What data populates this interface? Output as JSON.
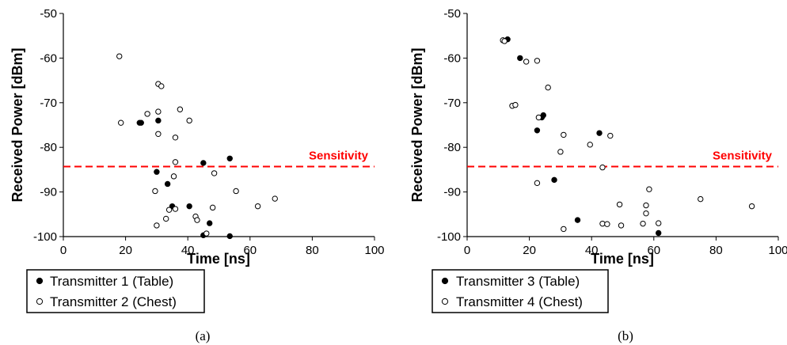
{
  "chart_data": [
    {
      "type": "scatter",
      "caption": "(a)",
      "xlabel": "Time [ns]",
      "ylabel": "Received Power [dBm]",
      "xlim": [
        0,
        100
      ],
      "ylim": [
        -100,
        -50
      ],
      "xticks": [
        "0",
        "20",
        "40",
        "60",
        "80",
        "100"
      ],
      "yticks": [
        "-50",
        "-60",
        "-70",
        "-80",
        "-90",
        "-100"
      ],
      "sensitivity": {
        "label": "Sensitivity",
        "value": -84.3,
        "color": "#ff0000"
      },
      "series": [
        {
          "name": "Transmitter 1 (Table)",
          "marker": "filled",
          "points": [
            [
              24.5,
              -74.5
            ],
            [
              25,
              -74.5
            ],
            [
              30.5,
              -74
            ],
            [
              30,
              -85.5
            ],
            [
              33.5,
              -88.2
            ],
            [
              35,
              -93.2
            ],
            [
              40.5,
              -93.2
            ],
            [
              45,
              -83.5
            ],
            [
              53.5,
              -82.5
            ],
            [
              47,
              -97
            ],
            [
              45,
              -99.7
            ],
            [
              53.5,
              -99.9
            ]
          ]
        },
        {
          "name": "Transmitter 2 (Chest)",
          "marker": "hollow",
          "points": [
            [
              18,
              -59.6
            ],
            [
              18.5,
              -74.5
            ],
            [
              27,
              -72.5
            ],
            [
              30.5,
              -65.8
            ],
            [
              31.5,
              -66.3
            ],
            [
              30.5,
              -72
            ],
            [
              30.5,
              -77
            ],
            [
              37.5,
              -71.5
            ],
            [
              40.5,
              -74
            ],
            [
              36,
              -77.8
            ],
            [
              36,
              -83.3
            ],
            [
              35.5,
              -86.5
            ],
            [
              48.5,
              -85.8
            ],
            [
              29.5,
              -89.8
            ],
            [
              33,
              -96
            ],
            [
              34,
              -94
            ],
            [
              36,
              -93.8
            ],
            [
              42.5,
              -95.5
            ],
            [
              43,
              -96.3
            ],
            [
              48,
              -93.5
            ],
            [
              55.5,
              -89.8
            ],
            [
              62.5,
              -93.2
            ],
            [
              68,
              -91.5
            ],
            [
              46,
              -99.3
            ],
            [
              30,
              -97.5
            ]
          ]
        }
      ]
    },
    {
      "type": "scatter",
      "caption": "(b)",
      "xlabel": "Time [ns]",
      "ylabel": "Received Power [dBm]",
      "xlim": [
        0,
        100
      ],
      "ylim": [
        -100,
        -50
      ],
      "xticks": [
        "0",
        "20",
        "40",
        "60",
        "80",
        "100"
      ],
      "yticks": [
        "-50",
        "-60",
        "-70",
        "-80",
        "-90",
        "-100"
      ],
      "sensitivity": {
        "label": "Sensitivity",
        "value": -84.3,
        "color": "#ff0000"
      },
      "series": [
        {
          "name": "Transmitter 3 (Table)",
          "marker": "filled",
          "points": [
            [
              13,
              -55.8
            ],
            [
              17,
              -60
            ],
            [
              24.5,
              -72.8
            ],
            [
              24,
              -73.3
            ],
            [
              22.5,
              -76.2
            ],
            [
              42.5,
              -76.8
            ],
            [
              28,
              -87.3
            ],
            [
              35.5,
              -96.3
            ],
            [
              61.5,
              -99.2
            ]
          ]
        },
        {
          "name": "Transmitter 4 (Chest)",
          "marker": "hollow",
          "points": [
            [
              11.5,
              -56
            ],
            [
              12,
              -56.2
            ],
            [
              19,
              -60.8
            ],
            [
              22.5,
              -60.6
            ],
            [
              26,
              -66.6
            ],
            [
              14.5,
              -70.7
            ],
            [
              15.5,
              -70.5
            ],
            [
              23,
              -73.3
            ],
            [
              31,
              -77.2
            ],
            [
              46,
              -77.4
            ],
            [
              39.5,
              -79.4
            ],
            [
              30,
              -81
            ],
            [
              43.5,
              -84.5
            ],
            [
              22.5,
              -88
            ],
            [
              49,
              -92.8
            ],
            [
              58.5,
              -89.4
            ],
            [
              57.5,
              -93
            ],
            [
              57.5,
              -94.8
            ],
            [
              56.5,
              -97.1
            ],
            [
              61.5,
              -97
            ],
            [
              43.5,
              -97.1
            ],
            [
              45,
              -97.2
            ],
            [
              49.5,
              -97.5
            ],
            [
              31,
              -98.3
            ],
            [
              75,
              -91.6
            ],
            [
              91.5,
              -93.2
            ]
          ]
        }
      ]
    }
  ]
}
